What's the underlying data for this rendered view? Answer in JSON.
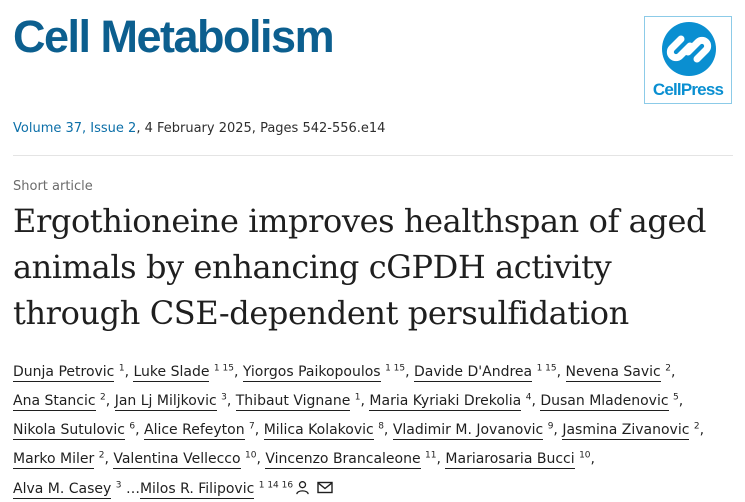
{
  "journal": {
    "title": "Cell Metabolism",
    "publisher_logo_text": "CellPress"
  },
  "citation": {
    "volume_link": "Volume 37, Issue 2",
    "details": ", 4 February 2025, Pages 542-556.e14"
  },
  "article": {
    "type": "Short article",
    "title": "Ergothioneine improves healthspan of aged animals by enhancing cGPDH activity through CSE-dependent persulfidation"
  },
  "authors": [
    {
      "name": "Dunja Petrovic",
      "aff": "1"
    },
    {
      "name": "Luke Slade",
      "aff": "1 15"
    },
    {
      "name": "Yiorgos Paikopoulos",
      "aff": "1 15"
    },
    {
      "name": "Davide D'Andrea",
      "aff": "1 15"
    },
    {
      "name": "Nevena Savic",
      "aff": "2"
    },
    {
      "name": "Ana Stancic",
      "aff": "2"
    },
    {
      "name": "Jan Lj Miljkovic",
      "aff": "3"
    },
    {
      "name": "Thibaut Vignane",
      "aff": "1"
    },
    {
      "name": "Maria Kyriaki Drekolia",
      "aff": "4"
    },
    {
      "name": "Dusan Mladenovic",
      "aff": "5"
    },
    {
      "name": "Nikola Sutulovic",
      "aff": "6"
    },
    {
      "name": "Alice Refeyton",
      "aff": "7"
    },
    {
      "name": "Milica Kolakovic",
      "aff": "8"
    },
    {
      "name": "Vladimir M. Jovanovic",
      "aff": "9"
    },
    {
      "name": "Jasmina Zivanovic",
      "aff": "2"
    },
    {
      "name": "Marko Miler",
      "aff": "2"
    },
    {
      "name": "Valentina Vellecco",
      "aff": "10"
    },
    {
      "name": "Vincenzo Brancaleone",
      "aff": "11"
    },
    {
      "name": "Mariarosaria Bucci",
      "aff": "10"
    },
    {
      "name": "Alva M. Casey",
      "aff": "3"
    },
    {
      "name": "Milos R. Filipovic",
      "aff": "1 14 16"
    }
  ],
  "authors_ellipsis": "…",
  "icons": {
    "corresponding": "person-icon",
    "email": "email-icon"
  },
  "colors": {
    "brand": "#0c5f8f",
    "link": "#0c6fa8",
    "logo": "#0a8fd1"
  }
}
